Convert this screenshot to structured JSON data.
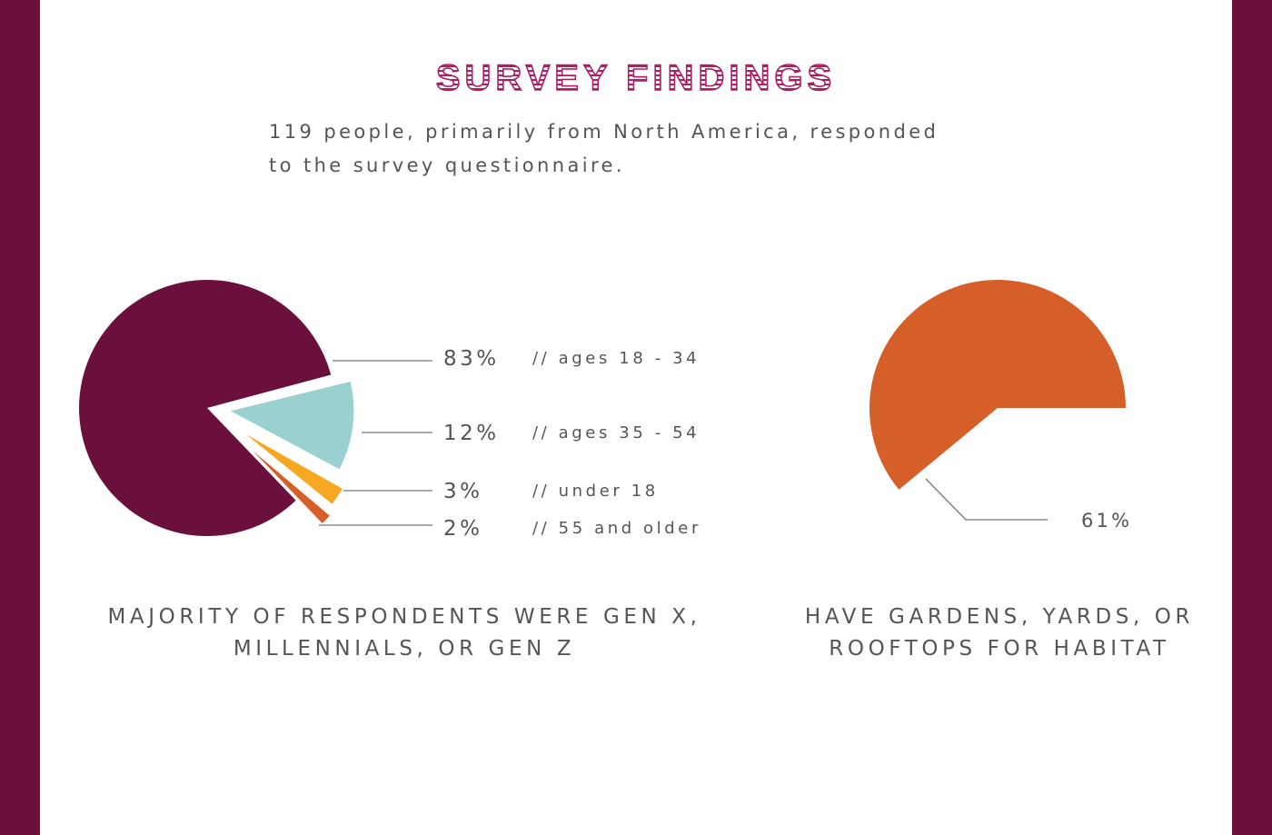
{
  "title": "SURVEY FINDINGS",
  "subtitle": {
    "line1": "119 people, primarily from North America, responded",
    "line2": "to the survey questionnaire."
  },
  "colors": {
    "border": "#6b103d",
    "title": "#b01d63",
    "text": "#555555",
    "leader": "#777777"
  },
  "chart_data": [
    {
      "type": "pie",
      "slices": [
        {
          "label": "// ages 18 - 34",
          "value": 83,
          "value_label": "83%",
          "color": "#6b103d"
        },
        {
          "label": "// ages 35 - 54",
          "value": 12,
          "value_label": "12%",
          "color": "#9ad1d0"
        },
        {
          "label": "// under 18",
          "value": 3,
          "value_label": "3%",
          "color": "#f7a823"
        },
        {
          "label": "// 55 and older",
          "value": 2,
          "value_label": "2%",
          "color": "#d65e28"
        }
      ],
      "caption_line1": "MAJORITY OF RESPONDENTS WERE GEN X,",
      "caption_line2": "MILLENNIALS, OR GEN Z"
    },
    {
      "type": "pie",
      "slices": [
        {
          "label": "",
          "value": 61,
          "value_label": "61%",
          "color": "#d65e28"
        }
      ],
      "caption_line1": "HAVE GARDENS, YARDS, OR",
      "caption_line2": "ROOFTOPS FOR HABITAT"
    }
  ]
}
